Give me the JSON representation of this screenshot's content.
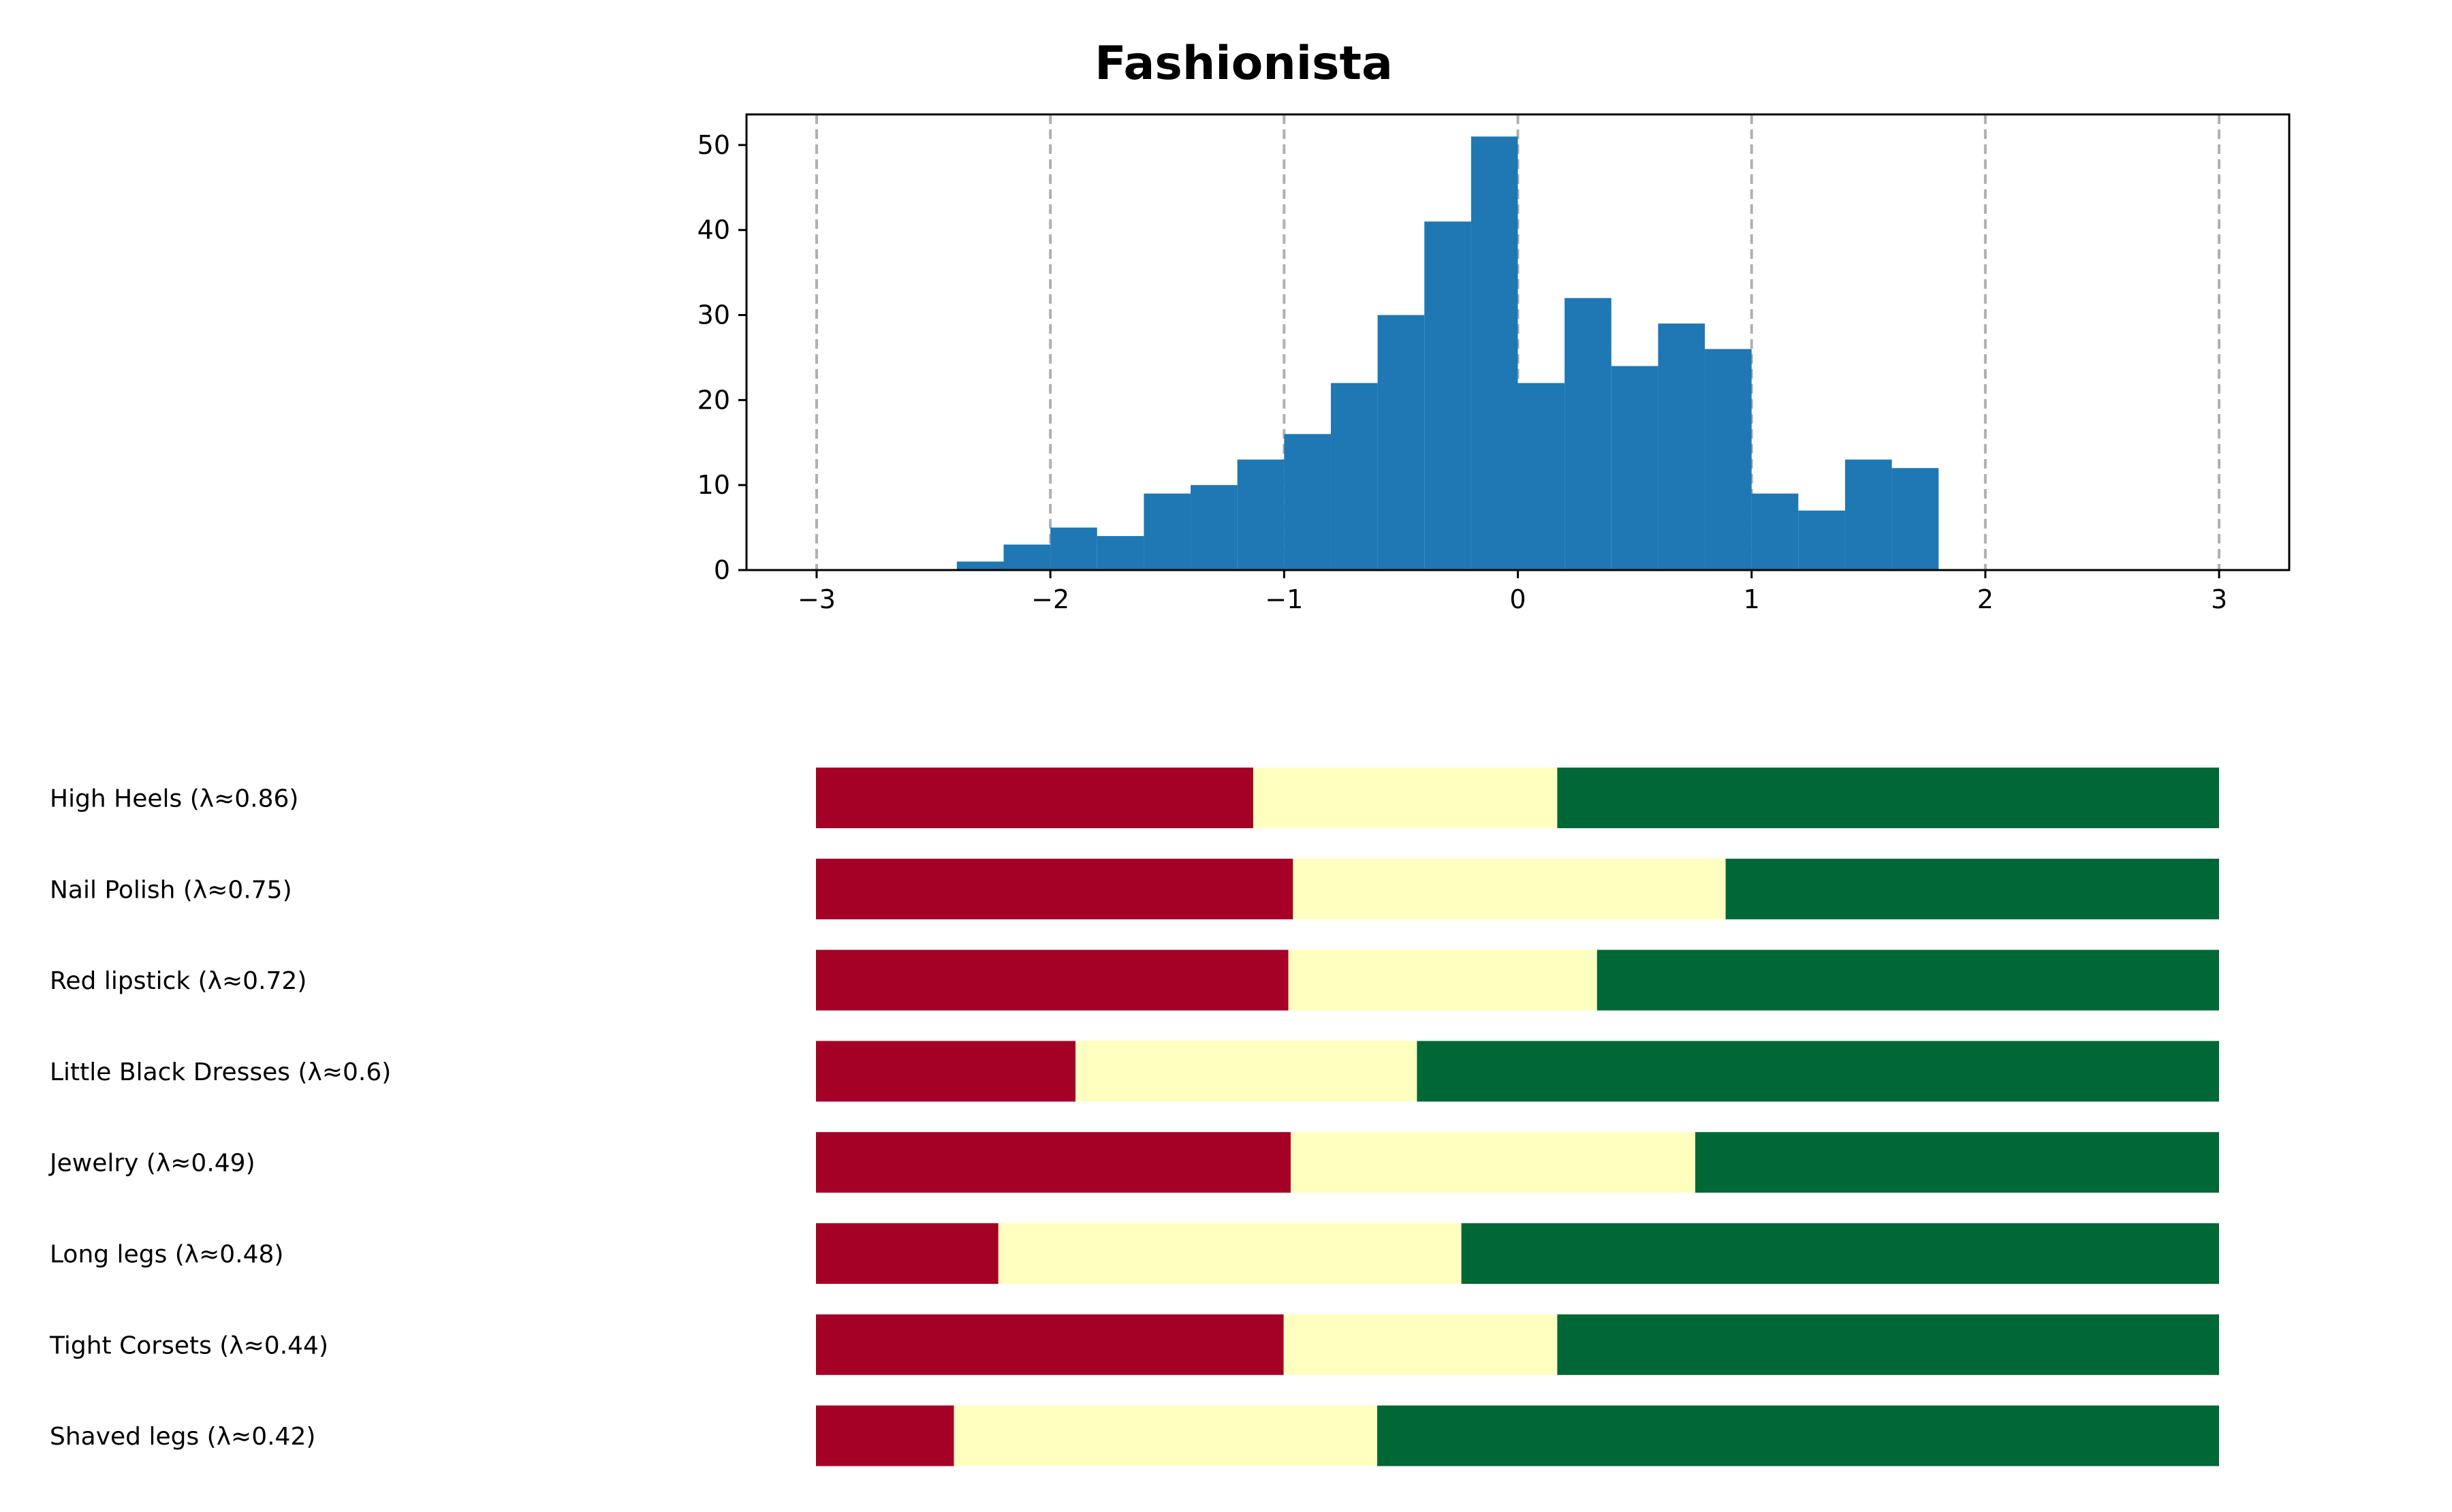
{
  "chart_data": [
    {
      "type": "histogram",
      "title": "Fashionista",
      "xlabel": "",
      "ylabel": "",
      "xlim": [
        -3.3,
        3.3
      ],
      "ylim": [
        0,
        53.6
      ],
      "grid": "vertical dashed at integer x",
      "color": "#1f77b4",
      "x_ticks": [
        -3,
        -2,
        -1,
        0,
        1,
        2,
        3
      ],
      "x_tick_labels": [
        "−3",
        "−2",
        "−1",
        "0",
        "1",
        "2",
        "3"
      ],
      "y_ticks": [
        0,
        10,
        20,
        30,
        40,
        50
      ],
      "y_tick_labels": [
        "0",
        "10",
        "20",
        "30",
        "40",
        "50"
      ],
      "bins": [
        {
          "x0": -2.4,
          "x1": -2.2,
          "count": 1
        },
        {
          "x0": -2.2,
          "x1": -2.0,
          "count": 3
        },
        {
          "x0": -2.0,
          "x1": -1.8,
          "count": 5
        },
        {
          "x0": -1.8,
          "x1": -1.6,
          "count": 4
        },
        {
          "x0": -1.6,
          "x1": -1.4,
          "count": 9
        },
        {
          "x0": -1.4,
          "x1": -1.2,
          "count": 10
        },
        {
          "x0": -1.2,
          "x1": -1.0,
          "count": 13
        },
        {
          "x0": -1.0,
          "x1": -0.8,
          "count": 16
        },
        {
          "x0": -0.8,
          "x1": -0.6,
          "count": 22
        },
        {
          "x0": -0.6,
          "x1": -0.4,
          "count": 30
        },
        {
          "x0": -0.4,
          "x1": -0.2,
          "count": 41
        },
        {
          "x0": -0.2,
          "x1": 0.0,
          "count": 51
        },
        {
          "x0": 0.0,
          "x1": 0.2,
          "count": 22
        },
        {
          "x0": 0.2,
          "x1": 0.4,
          "count": 32
        },
        {
          "x0": 0.4,
          "x1": 0.6,
          "count": 24
        },
        {
          "x0": 0.6,
          "x1": 0.8,
          "count": 29
        },
        {
          "x0": 0.8,
          "x1": 1.0,
          "count": 26
        },
        {
          "x0": 1.0,
          "x1": 1.2,
          "count": 9
        },
        {
          "x0": 1.2,
          "x1": 1.4,
          "count": 7
        },
        {
          "x0": 1.4,
          "x1": 1.6,
          "count": 13
        },
        {
          "x0": 1.6,
          "x1": 1.8,
          "count": 12
        }
      ]
    },
    {
      "type": "bar",
      "orientation": "horizontal-stacked",
      "xlim": [
        -3,
        3
      ],
      "colors": {
        "low": "#a50026",
        "mid": "#ffffbf",
        "high": "#006837"
      },
      "items": [
        {
          "label": "High Heels (λ≈0.86)",
          "t1": -1.13,
          "t2": 0.17
        },
        {
          "label": "Nail Polish (λ≈0.75)",
          "t1": -0.96,
          "t2": 0.89
        },
        {
          "label": "Red lipstick (λ≈0.72)",
          "t1": -0.98,
          "t2": 0.34
        },
        {
          "label": "Little Black Dresses (λ≈0.6)",
          "t1": -1.89,
          "t2": -0.43
        },
        {
          "label": "Jewelry (λ≈0.49)",
          "t1": -0.97,
          "t2": 0.76
        },
        {
          "label": "Long legs (λ≈0.48)",
          "t1": -2.22,
          "t2": -0.24
        },
        {
          "label": "Tight Corsets (λ≈0.44)",
          "t1": -1.0,
          "t2": 0.17
        },
        {
          "label": "Shaved legs (λ≈0.42)",
          "t1": -2.41,
          "t2": -0.6
        }
      ]
    }
  ]
}
